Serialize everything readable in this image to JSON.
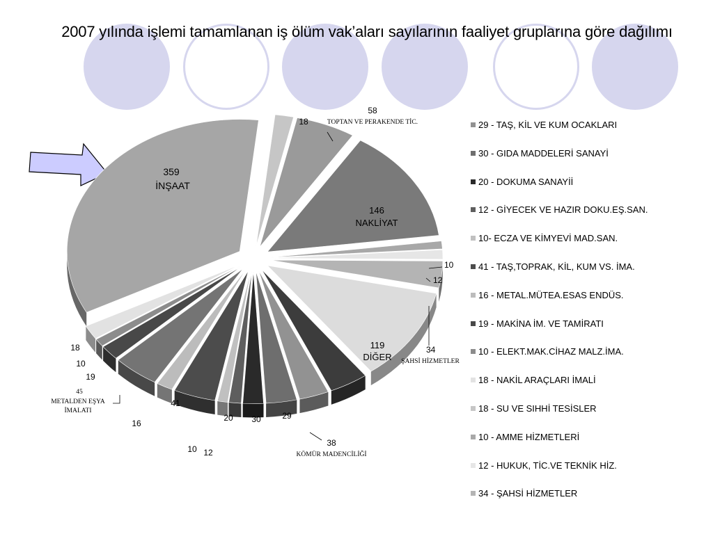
{
  "title": "2007 yılında işlemi tamamlanan iş ölüm vak’aları sayılarının faaliyet gruplarına göre dağılımı",
  "chart_data": {
    "type": "pie",
    "title": "2007 yılında işlemi tamamlanan iş ölüm vak’aları sayılarının faaliyet gruplarına göre dağılımı",
    "exploded_3d": true,
    "slices": [
      {
        "label": "TOPTAN VE PERAKENDE TİC.",
        "value": 58,
        "color": "#9a9a9a"
      },
      {
        "label": "NAKLİYAT",
        "value": 146,
        "color": "#7a7a7a"
      },
      {
        "label": "",
        "value": 10,
        "color": "#a8a8a8"
      },
      {
        "label": "",
        "value": 12,
        "color": "#e6e6e6"
      },
      {
        "label": "ŞAHSİ HİZMETLER",
        "value": 34,
        "color": "#b4b4b4"
      },
      {
        "label": "DİĞER",
        "value": 119,
        "color": "#dcdcdc"
      },
      {
        "label": "KÖMÜR MADENCİLİĞİ",
        "value": 38,
        "color": "#3c3c3c"
      },
      {
        "label": "",
        "value": 29,
        "color": "#929292"
      },
      {
        "label": "",
        "value": 30,
        "color": "#6e6e6e"
      },
      {
        "label": "",
        "value": 20,
        "color": "#2a2a2a"
      },
      {
        "label": "",
        "value": 12,
        "color": "#5e5e5e"
      },
      {
        "label": "",
        "value": 10,
        "color": "#c0c0c0"
      },
      {
        "label": "",
        "value": 41,
        "color": "#4c4c4c"
      },
      {
        "label": "",
        "value": 16,
        "color": "#bcbcbc"
      },
      {
        "label": "METALDEN EŞYA İMALATI",
        "value": 45,
        "color": "#747474"
      },
      {
        "label": "",
        "value": 19,
        "color": "#484848"
      },
      {
        "label": "",
        "value": 10,
        "color": "#8c8c8c"
      },
      {
        "label": "",
        "value": 18,
        "color": "#e2e2e2"
      },
      {
        "label": "İNŞAAT",
        "value": 359,
        "color": "#a6a6a6"
      },
      {
        "label": "",
        "value": 18,
        "color": "#c6c6c6"
      }
    ],
    "slice_labels": {
      "s0_value": "58",
      "s0_name": "TOPTAN VE PERAKENDE TİC.",
      "s1_value": "146",
      "s1_name": "NAKLİYAT",
      "s2_value": "10",
      "s3_value": "12",
      "s4_value": "34",
      "s4_name": "ŞAHSİ HİZMETLER",
      "s5_value": "119",
      "s5_name": "DİĞER",
      "s6_value": "38",
      "s6_name": "KÖMÜR MADENCİLİĞİ",
      "s7_value": "29",
      "s8_value": "30",
      "s9_value": "20",
      "s10_value": "12",
      "s11_value": "10",
      "s12_value": "41",
      "s13_value": "16",
      "s14_value": "45",
      "s14_name_1": "METALDEN EŞYA",
      "s14_name_2": "İMALATI",
      "s15_value": "19",
      "s16_value": "10",
      "s17_value": "18",
      "s18_value": "359",
      "s18_name": "İNŞAAT",
      "s19_value": "18"
    },
    "legend_position": "right",
    "legend": [
      {
        "label": "29 - TAŞ, KİL VE KUM OCAKLARI",
        "color": "#929292"
      },
      {
        "label": "30 - GIDA MADDELERİ SANAYİ",
        "color": "#6e6e6e"
      },
      {
        "label": "20 - DOKUMA SANAYİİ",
        "color": "#2a2a2a"
      },
      {
        "label": "12 - GİYECEK VE HAZIR DOKU.EŞ.SAN.",
        "color": "#5e5e5e"
      },
      {
        "label": "10- ECZA VE KİMYEVİ MAD.SAN.",
        "color": "#c0c0c0"
      },
      {
        "label": "41 - TAŞ,TOPRAK, KİL, KUM VS. İMA.",
        "color": "#4c4c4c"
      },
      {
        "label": "16 - METAL.MÜTEA.ESAS ENDÜS.",
        "color": "#bcbcbc"
      },
      {
        "label": "19 - MAKİNA İM. VE TAMİRATI",
        "color": "#484848"
      },
      {
        "label": "10 - ELEKT.MAK.CİHAZ MALZ.İMA.",
        "color": "#8c8c8c"
      },
      {
        "label": "18 - NAKİL ARAÇLARI İMALİ",
        "color": "#e2e2e2"
      },
      {
        "label": "18 - SU VE SIHHİ TESİSLER",
        "color": "#c6c6c6"
      },
      {
        "label": "10 - AMME HİZMETLERİ",
        "color": "#a8a8a8"
      },
      {
        "label": "12 - HUKUK, TİC.VE TEKNİK HİZ.",
        "color": "#e6e6e6"
      },
      {
        "label": "34 - ŞAHSİ HİZMETLER",
        "color": "#b4b4b4"
      }
    ]
  },
  "decor": {
    "circle_color": "#d6d6ee",
    "arrow_fill": "#ccccff"
  }
}
